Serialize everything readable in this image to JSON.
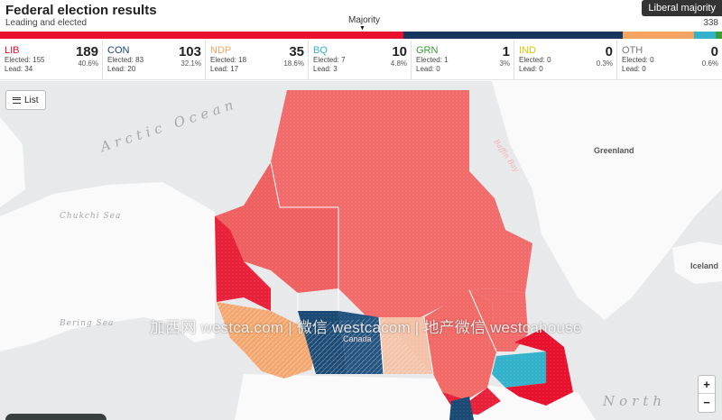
{
  "header": {
    "title": "Federal election results",
    "subtitle": "Leading and elected",
    "majority_badge": "Liberal majority",
    "seat_total": "338",
    "majority_label": "Majority",
    "majority_arrow": "▼"
  },
  "seatbar_colors": {
    "lib": "#e8112d",
    "con": "#17375e",
    "ndp": "#f4a460",
    "bq": "#33b2cc",
    "grn": "#3d9b35"
  },
  "parties": [
    {
      "name": "LIB",
      "seats": "189",
      "pct": "40.6%",
      "elected": "Elected: 155",
      "lead": "Lead: 34",
      "color": "#e8112d"
    },
    {
      "name": "CON",
      "seats": "103",
      "pct": "32.1%",
      "elected": "Elected: 83",
      "lead": "Lead: 20",
      "color": "#1a4782"
    },
    {
      "name": "NDP",
      "seats": "35",
      "pct": "18.6%",
      "elected": "Elected: 18",
      "lead": "Lead: 17",
      "color": "#f4a460"
    },
    {
      "name": "BQ",
      "seats": "10",
      "pct": "4.8%",
      "elected": "Elected: 7",
      "lead": "Lead: 3",
      "color": "#33b2cc"
    },
    {
      "name": "GRN",
      "seats": "1",
      "pct": "3%",
      "elected": "Elected: 1",
      "lead": "Lead: 0",
      "color": "#3d9b35"
    },
    {
      "name": "IND",
      "seats": "0",
      "pct": "0.3%",
      "elected": "Elected: 0",
      "lead": "Lead: 0",
      "color": "#e0c600"
    },
    {
      "name": "OTH",
      "seats": "0",
      "pct": "0.6%",
      "elected": "Elected: 0",
      "lead": "Lead: 0",
      "color": "#777777"
    }
  ],
  "map": {
    "labels": {
      "arctic_ocean": "Arctic Ocean",
      "chukchi_sea": "Chukchi Sea",
      "bering_sea": "Bering Sea",
      "greenland": "Greenland",
      "iceland": "Iceland",
      "baffin_bay": "Baffin Bay",
      "canada": "Canada",
      "north": "North"
    },
    "watermark": "加西网 westca.com | 微信 westcacom | 地产微信 westcahouse",
    "list_button": "List",
    "zoom_in": "+",
    "zoom_out": "−"
  }
}
